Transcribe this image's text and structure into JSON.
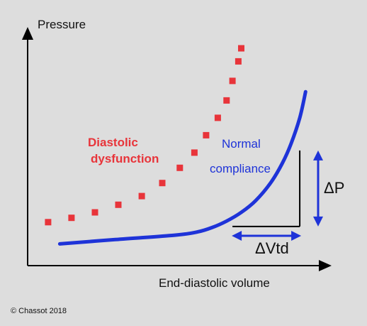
{
  "chart_data": {
    "type": "line",
    "xlabel": "End-diastolic volume",
    "ylabel": "Pressure",
    "xlim": [
      0,
      100
    ],
    "ylim": [
      0,
      100
    ],
    "grid": false,
    "legend": "none",
    "series": [
      {
        "style": "solid",
        "color": "#1e33d8",
        "x": [
          11,
          30,
          50,
          58,
          63,
          68,
          73,
          78,
          83,
          87,
          90,
          93,
          95
        ],
        "y": [
          10,
          12,
          14,
          15.5,
          17.5,
          20.5,
          24.5,
          30,
          38,
          47,
          56,
          68,
          80
        ]
      },
      {
        "style": "dotted",
        "color": "#e8343a",
        "x": [
          7,
          15,
          23,
          31,
          39,
          46,
          52,
          57,
          61,
          65,
          68,
          70,
          72,
          73
        ],
        "y": [
          20,
          22,
          24.5,
          28,
          32,
          38,
          45,
          52,
          60,
          68,
          76,
          85,
          94,
          100
        ]
      }
    ],
    "annotations": [
      {
        "id": "diastolic-dysfunction",
        "lines": [
          "Diastolic",
          "dysfunction"
        ],
        "color": "#e8343a"
      },
      {
        "id": "normal-compliance",
        "lines": [
          "Normal",
          "compliance"
        ],
        "color": "#1e33d8"
      },
      {
        "id": "delta-p",
        "text": "ΔP"
      },
      {
        "id": "delta-vtd",
        "text": "ΔVtd"
      }
    ],
    "delta_triangle": {
      "x_start": 70,
      "x_end": 93,
      "y_start": 18,
      "y_end": 53
    },
    "credit": "© Chassot 2018"
  },
  "colors": {
    "background": "#dddddd",
    "axis": "#000000",
    "normal": "#1e33d8",
    "dysfunction": "#e8343a"
  }
}
